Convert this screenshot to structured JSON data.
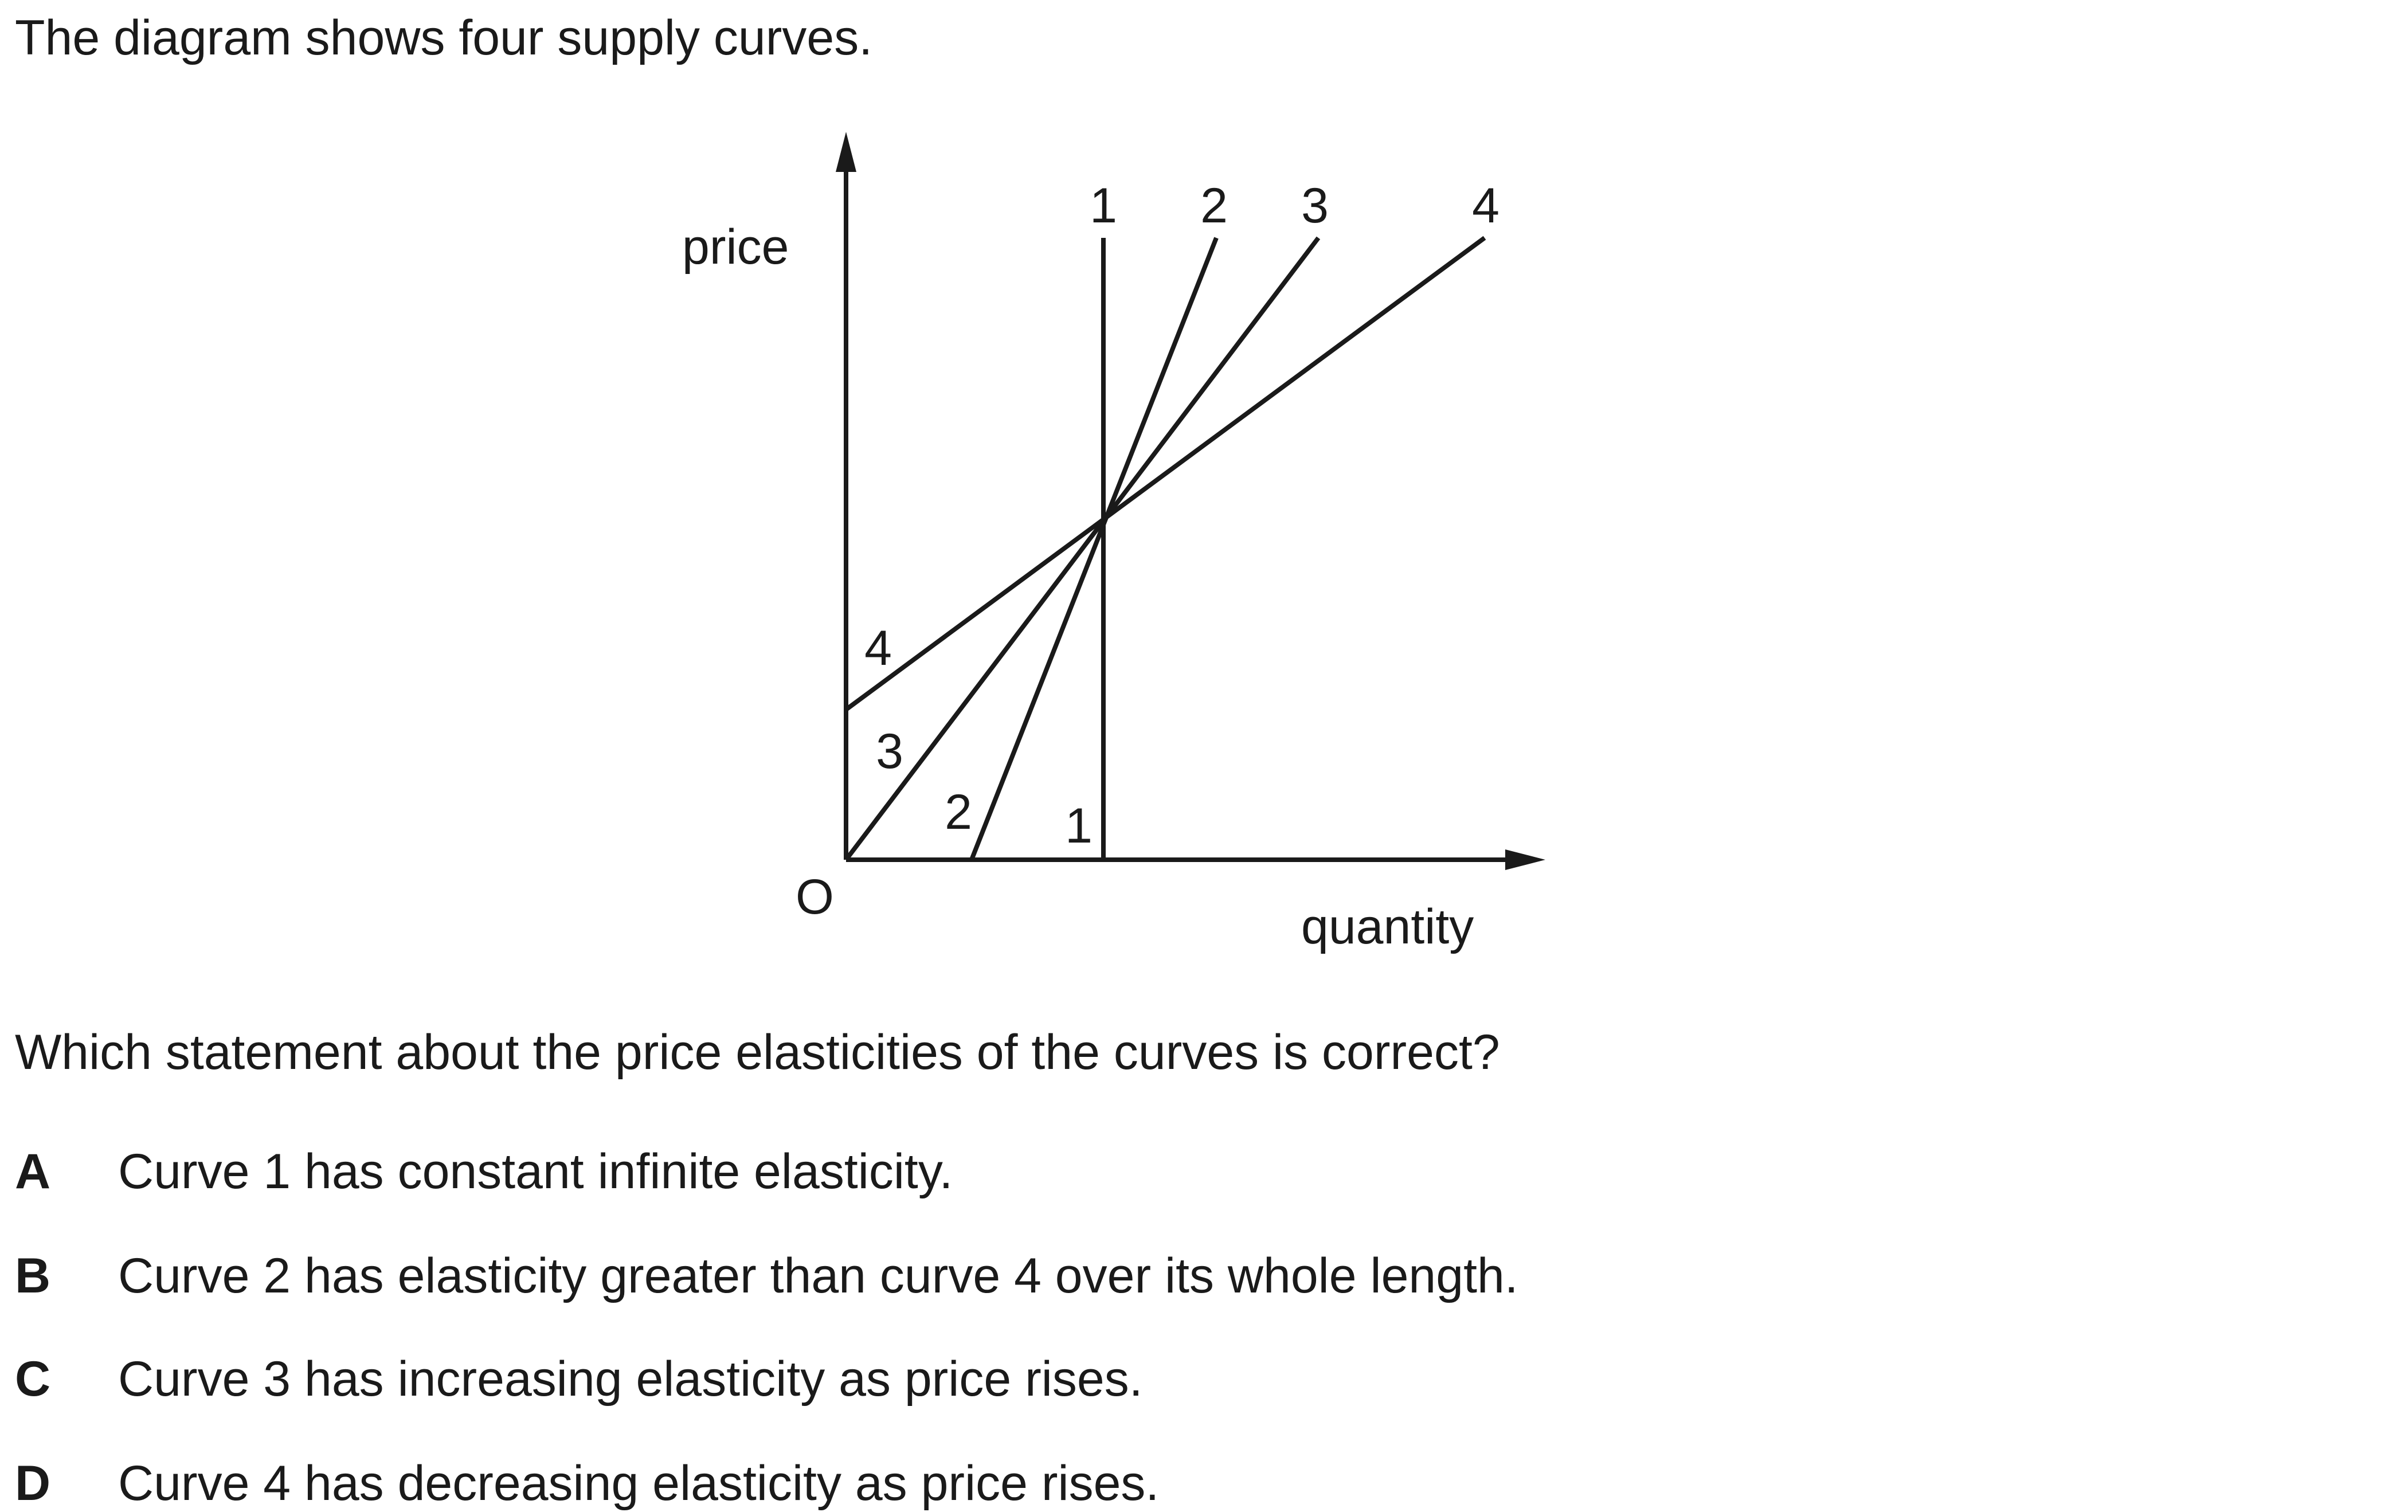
{
  "intro": "The diagram shows four supply curves.",
  "diagram": {
    "y_axis_label": "price",
    "x_axis_label": "quantity",
    "origin_label": "O",
    "curve_top_labels": [
      "1",
      "2",
      "3",
      "4"
    ],
    "curve_bottom_labels": [
      "1",
      "2",
      "3",
      "4"
    ]
  },
  "question": "Which statement about the price elasticities of the curves is correct?",
  "options": [
    {
      "letter": "A",
      "text": "Curve 1 has constant infinite elasticity."
    },
    {
      "letter": "B",
      "text": "Curve 2 has elasticity greater than curve 4 over its whole length."
    },
    {
      "letter": "C",
      "text": "Curve 3 has increasing elasticity as price rises."
    },
    {
      "letter": "D",
      "text": "Curve 4 has decreasing elasticity as price rises."
    }
  ]
}
